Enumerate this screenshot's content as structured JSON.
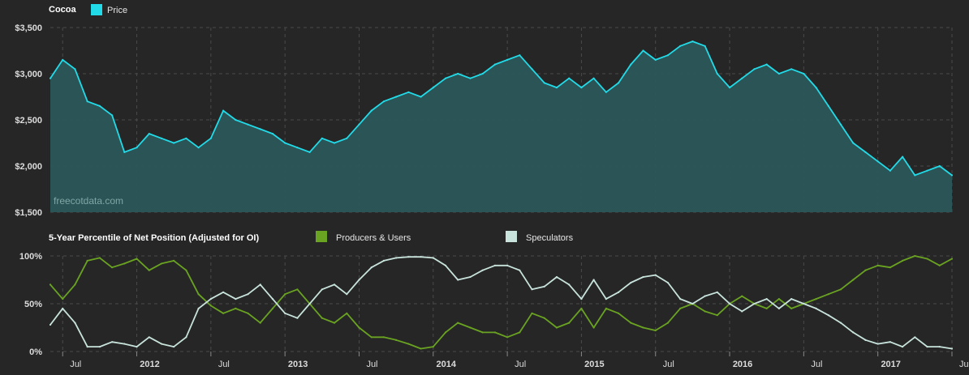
{
  "top": {
    "title": "Cocoa",
    "legend_label": "Price",
    "watermark": "freecotdata.com"
  },
  "bottom": {
    "title": "5-Year Percentile of Net Position (Adjusted for OI)",
    "legend": [
      "Producers & Users",
      "Speculators"
    ]
  },
  "colors": {
    "background": "#262626",
    "price_line": "#22dbe8",
    "price_fill": "#2b5658",
    "producers": "#6aa321",
    "speculators": "#c8e3dc",
    "grid": "#4a4a4a",
    "tick_text": "#dcdcdc"
  },
  "chart_data": [
    {
      "type": "area",
      "title": "Cocoa",
      "series": [
        {
          "name": "Price",
          "x": [
            "2011-06",
            "2011-07",
            "2011-08",
            "2011-09",
            "2011-10",
            "2011-11",
            "2011-12",
            "2012-01",
            "2012-02",
            "2012-03",
            "2012-04",
            "2012-05",
            "2012-06",
            "2012-07",
            "2012-08",
            "2012-09",
            "2012-10",
            "2012-11",
            "2012-12",
            "2013-01",
            "2013-02",
            "2013-03",
            "2013-04",
            "2013-05",
            "2013-06",
            "2013-07",
            "2013-08",
            "2013-09",
            "2013-10",
            "2013-11",
            "2013-12",
            "2014-01",
            "2014-02",
            "2014-03",
            "2014-04",
            "2014-05",
            "2014-06",
            "2014-07",
            "2014-08",
            "2014-09",
            "2014-10",
            "2014-11",
            "2014-12",
            "2015-01",
            "2015-02",
            "2015-03",
            "2015-04",
            "2015-05",
            "2015-06",
            "2015-07",
            "2015-08",
            "2015-09",
            "2015-10",
            "2015-11",
            "2015-12",
            "2016-01",
            "2016-02",
            "2016-03",
            "2016-04",
            "2016-05",
            "2016-06",
            "2016-07",
            "2016-08",
            "2016-09",
            "2016-10",
            "2016-11",
            "2016-12",
            "2017-01",
            "2017-02",
            "2017-03",
            "2017-04",
            "2017-05",
            "2017-06",
            "2017-07"
          ],
          "values": [
            2950,
            3150,
            3050,
            2700,
            2650,
            2550,
            2150,
            2200,
            2350,
            2300,
            2250,
            2300,
            2200,
            2300,
            2600,
            2500,
            2450,
            2400,
            2350,
            2250,
            2200,
            2150,
            2300,
            2250,
            2300,
            2450,
            2600,
            2700,
            2750,
            2800,
            2750,
            2850,
            2950,
            3000,
            2950,
            3000,
            3100,
            3150,
            3200,
            3050,
            2900,
            2850,
            2950,
            2850,
            2950,
            2800,
            2900,
            3100,
            3250,
            3150,
            3200,
            3300,
            3350,
            3300,
            3000,
            2850,
            2950,
            3050,
            3100,
            3000,
            3050,
            3000,
            2850,
            2650,
            2450,
            2250,
            2150,
            2050,
            1950,
            2100,
            1900,
            1950,
            2000,
            1900
          ]
        }
      ],
      "ylim": [
        1500,
        3500
      ],
      "yticks": [
        "$1,500",
        "$2,000",
        "$2,500",
        "$3,000",
        "$3,500"
      ],
      "grid": true,
      "legend_position": "top-left"
    },
    {
      "type": "line",
      "title": "5-Year Percentile of Net Position (Adjusted for OI)",
      "x": [
        "2011-06",
        "2011-07",
        "2011-08",
        "2011-09",
        "2011-10",
        "2011-11",
        "2011-12",
        "2012-01",
        "2012-02",
        "2012-03",
        "2012-04",
        "2012-05",
        "2012-06",
        "2012-07",
        "2012-08",
        "2012-09",
        "2012-10",
        "2012-11",
        "2012-12",
        "2013-01",
        "2013-02",
        "2013-03",
        "2013-04",
        "2013-05",
        "2013-06",
        "2013-07",
        "2013-08",
        "2013-09",
        "2013-10",
        "2013-11",
        "2013-12",
        "2014-01",
        "2014-02",
        "2014-03",
        "2014-04",
        "2014-05",
        "2014-06",
        "2014-07",
        "2014-08",
        "2014-09",
        "2014-10",
        "2014-11",
        "2014-12",
        "2015-01",
        "2015-02",
        "2015-03",
        "2015-04",
        "2015-05",
        "2015-06",
        "2015-07",
        "2015-08",
        "2015-09",
        "2015-10",
        "2015-11",
        "2015-12",
        "2016-01",
        "2016-02",
        "2016-03",
        "2016-04",
        "2016-05",
        "2016-06",
        "2016-07",
        "2016-08",
        "2016-09",
        "2016-10",
        "2016-11",
        "2016-12",
        "2017-01",
        "2017-02",
        "2017-03",
        "2017-04",
        "2017-05",
        "2017-06",
        "2017-07"
      ],
      "series": [
        {
          "name": "Producers & Users",
          "values": [
            70,
            55,
            70,
            95,
            98,
            88,
            92,
            97,
            85,
            92,
            95,
            85,
            60,
            48,
            40,
            45,
            40,
            30,
            45,
            60,
            65,
            50,
            35,
            30,
            40,
            25,
            15,
            15,
            12,
            8,
            3,
            5,
            20,
            30,
            25,
            20,
            20,
            15,
            20,
            40,
            35,
            25,
            30,
            45,
            25,
            45,
            40,
            30,
            25,
            22,
            30,
            45,
            50,
            42,
            38,
            50,
            58,
            50,
            45,
            55,
            45,
            50,
            55,
            60,
            65,
            75,
            85,
            90,
            88,
            95,
            100,
            97,
            90,
            97
          ]
        },
        {
          "name": "Speculators",
          "values": [
            28,
            45,
            30,
            5,
            5,
            10,
            8,
            5,
            15,
            8,
            5,
            15,
            45,
            55,
            62,
            55,
            60,
            70,
            55,
            40,
            35,
            50,
            65,
            70,
            60,
            75,
            88,
            95,
            98,
            99,
            99,
            98,
            90,
            75,
            78,
            85,
            90,
            90,
            85,
            65,
            68,
            78,
            70,
            55,
            75,
            55,
            62,
            72,
            78,
            80,
            72,
            55,
            50,
            58,
            62,
            50,
            42,
            50,
            55,
            45,
            55,
            50,
            45,
            38,
            30,
            20,
            12,
            8,
            10,
            5,
            15,
            5,
            5,
            3
          ]
        }
      ],
      "ylim": [
        0,
        100
      ],
      "yticks": [
        "0%",
        "50%",
        "100%"
      ],
      "grid": true,
      "legend_position": "top"
    }
  ],
  "x_axis": {
    "labels": [
      {
        "text": "Jul",
        "date": "2011-07",
        "bold": false
      },
      {
        "text": "2012",
        "date": "2012-01",
        "bold": true
      },
      {
        "text": "Jul",
        "date": "2012-07",
        "bold": false
      },
      {
        "text": "2013",
        "date": "2013-01",
        "bold": true
      },
      {
        "text": "Jul",
        "date": "2013-07",
        "bold": false
      },
      {
        "text": "2014",
        "date": "2014-01",
        "bold": true
      },
      {
        "text": "Jul",
        "date": "2014-07",
        "bold": false
      },
      {
        "text": "2015",
        "date": "2015-01",
        "bold": true
      },
      {
        "text": "Jul",
        "date": "2015-07",
        "bold": false
      },
      {
        "text": "2016",
        "date": "2016-01",
        "bold": true
      },
      {
        "text": "Jul",
        "date": "2016-07",
        "bold": false
      },
      {
        "text": "2017",
        "date": "2017-01",
        "bold": true
      },
      {
        "text": "Jul",
        "date": "2017-07",
        "bold": false
      }
    ]
  }
}
